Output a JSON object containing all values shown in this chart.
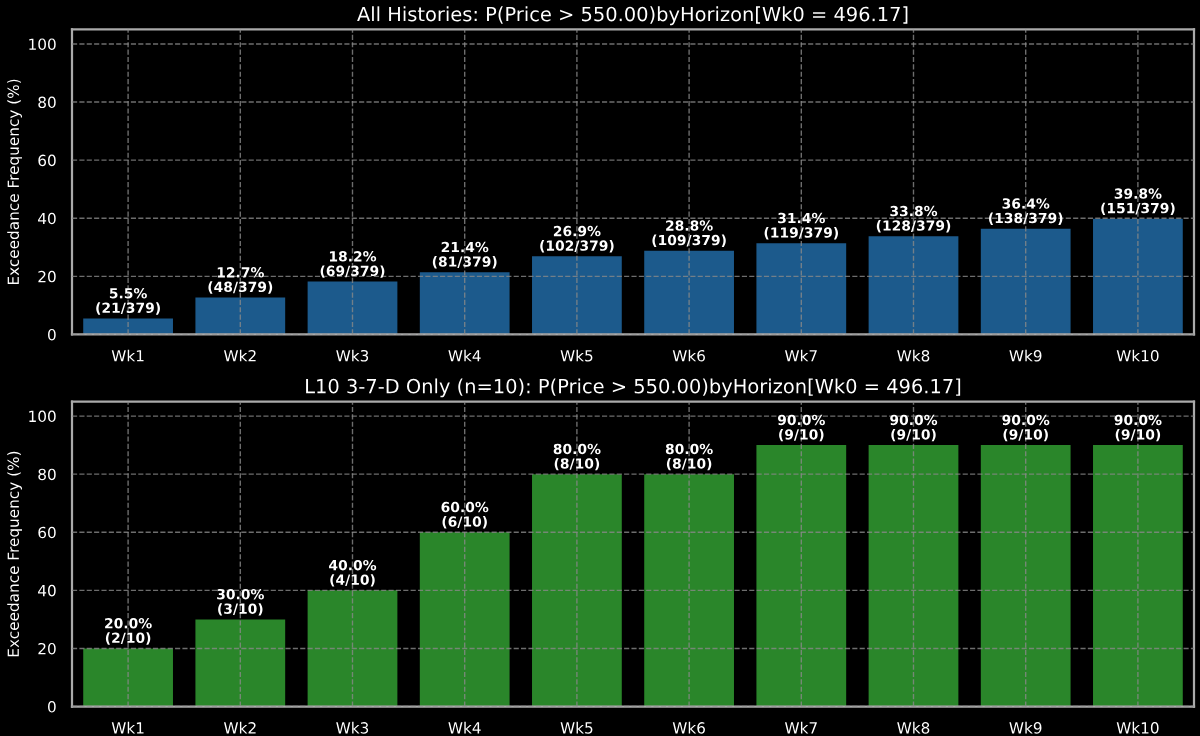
{
  "chart_data": [
    {
      "type": "bar",
      "title": "All Histories: P(Price > 550.00)byHorizon[Wk0 = 496.17]",
      "ylabel": "Exceedance Frequency (%)",
      "categories": [
        "Wk1",
        "Wk2",
        "Wk3",
        "Wk4",
        "Wk5",
        "Wk6",
        "Wk7",
        "Wk8",
        "Wk9",
        "Wk10"
      ],
      "values": [
        5.5,
        12.7,
        18.2,
        21.4,
        26.9,
        28.8,
        31.4,
        33.8,
        36.4,
        39.8
      ],
      "value_labels": [
        "5.5%\n(21/379)",
        "12.7%\n(48/379)",
        "18.2%\n(69/379)",
        "21.4%\n(81/379)",
        "26.9%\n(102/379)",
        "28.8%\n(109/379)",
        "31.4%\n(119/379)",
        "33.8%\n(128/379)",
        "36.4%\n(138/379)",
        "39.8%\n(151/379)"
      ],
      "color": "#1c5a8c",
      "ylim": [
        0,
        105
      ],
      "yticks": [
        0,
        20,
        40,
        60,
        80,
        100
      ],
      "grid": true
    },
    {
      "type": "bar",
      "title": "L10 3-7-D Only (n=10): P(Price > 550.00)byHorizon[Wk0 = 496.17]",
      "ylabel": "Exceedance Frequency (%)",
      "categories": [
        "Wk1",
        "Wk2",
        "Wk3",
        "Wk4",
        "Wk5",
        "Wk6",
        "Wk7",
        "Wk8",
        "Wk9",
        "Wk10"
      ],
      "values": [
        20.0,
        30.0,
        40.0,
        60.0,
        80.0,
        80.0,
        90.0,
        90.0,
        90.0,
        90.0
      ],
      "value_labels": [
        "20.0%\n(2/10)",
        "30.0%\n(3/10)",
        "40.0%\n(4/10)",
        "60.0%\n(6/10)",
        "80.0%\n(8/10)",
        "80.0%\n(8/10)",
        "90.0%\n(9/10)",
        "90.0%\n(9/10)",
        "90.0%\n(9/10)",
        "90.0%\n(9/10)"
      ],
      "color": "#2a862a",
      "ylim": [
        0,
        105
      ],
      "yticks": [
        0,
        20,
        40,
        60,
        80,
        100
      ],
      "grid": true
    }
  ]
}
